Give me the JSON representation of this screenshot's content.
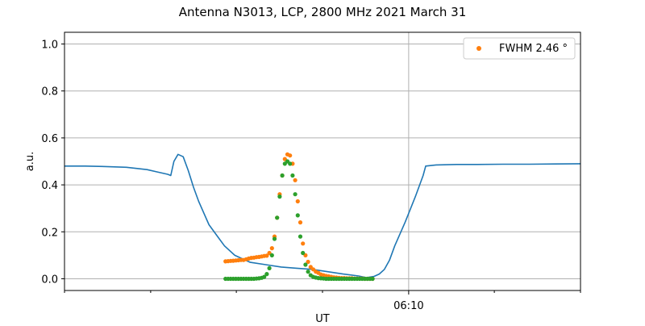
{
  "chart_data": {
    "type": "scatter",
    "title": "Antenna N3013, LCP, 2800 MHz 2021 March 31",
    "xlabel": "UT",
    "ylabel": "a.u.",
    "xlim": [
      0,
      100
    ],
    "ylim": [
      -0.05,
      1.05
    ],
    "yticks": [
      0.0,
      0.2,
      0.4,
      0.6,
      0.8,
      1.0
    ],
    "ytick_labels": [
      "0.0",
      "0.2",
      "0.4",
      "0.6",
      "0.8",
      "1.0"
    ],
    "xticks_labeled": [
      {
        "x": 66.7,
        "label": "06:10"
      }
    ],
    "xticks_minor": [
      0,
      16.7,
      33.3,
      50,
      83.3,
      100
    ],
    "grid": true,
    "legend_position": "top-right",
    "colors": {
      "line": "#1f77b4",
      "data": "#ff7f0e",
      "fit": "#2ca02c",
      "grid": "#b0b0b0"
    },
    "series": [
      {
        "kind": "line",
        "x": [
          0,
          4,
          8,
          12,
          16,
          18,
          20,
          20.6,
          21.2,
          22,
          23,
          24,
          25,
          26,
          28,
          30,
          31,
          33,
          36,
          39,
          42,
          45,
          48,
          51,
          54,
          57,
          58.5,
          60,
          61,
          62,
          63,
          64,
          66,
          68,
          69.5,
          70,
          72,
          76,
          80,
          85,
          90,
          95,
          100
        ],
        "y": [
          0.48,
          0.48,
          0.478,
          0.475,
          0.465,
          0.455,
          0.445,
          0.44,
          0.5,
          0.53,
          0.52,
          0.46,
          0.39,
          0.33,
          0.23,
          0.17,
          0.14,
          0.1,
          0.07,
          0.06,
          0.05,
          0.045,
          0.04,
          0.03,
          0.02,
          0.012,
          0.005,
          0.01,
          0.02,
          0.04,
          0.08,
          0.14,
          0.24,
          0.35,
          0.44,
          0.48,
          0.485,
          0.487,
          0.487,
          0.488,
          0.488,
          0.489,
          0.49
        ]
      },
      {
        "kind": "scatter",
        "name": "FWHM 2.46$^\\circ$",
        "legend_label": "FWHM 2.46 °",
        "x": [
          31.2,
          31.7,
          32.2,
          32.7,
          33.2,
          33.7,
          34.2,
          34.7,
          35.2,
          35.7,
          36.2,
          36.7,
          37.2,
          37.7,
          38.2,
          38.7,
          39.2,
          39.7,
          40.2,
          40.7,
          41.2,
          41.7,
          42.2,
          42.7,
          43.2,
          43.7,
          44.2,
          44.7,
          45.2,
          45.7,
          46.2,
          46.7,
          47.2,
          47.7,
          48.2,
          48.7,
          49.2,
          49.7,
          50.2,
          50.7,
          51.2,
          51.7,
          52.2,
          52.7,
          53.2,
          53.7,
          54.2,
          54.7,
          55.2,
          55.7,
          56.2,
          56.7,
          57.2,
          57.7,
          58.2,
          58.7,
          59.2,
          59.7
        ],
        "y": [
          0.074,
          0.075,
          0.076,
          0.077,
          0.078,
          0.079,
          0.08,
          0.08,
          0.083,
          0.086,
          0.089,
          0.09,
          0.092,
          0.093,
          0.095,
          0.097,
          0.098,
          0.11,
          0.13,
          0.18,
          0.26,
          0.36,
          0.44,
          0.51,
          0.53,
          0.525,
          0.49,
          0.42,
          0.33,
          0.24,
          0.15,
          0.1,
          0.072,
          0.05,
          0.04,
          0.03,
          0.025,
          0.018,
          0.015,
          0.012,
          0.01,
          0.008,
          0.006,
          0.005,
          0.004,
          0.003,
          0.003,
          0.002,
          0.002,
          0.002,
          0.001,
          0.001,
          0.001,
          0.001,
          0.0,
          0.0,
          0.0,
          0.0
        ]
      },
      {
        "kind": "scatter",
        "x": [
          31.2,
          31.7,
          32.2,
          32.7,
          33.2,
          33.7,
          34.2,
          34.7,
          35.2,
          35.7,
          36.2,
          36.7,
          37.2,
          37.7,
          38.2,
          38.7,
          39.2,
          39.7,
          40.2,
          40.7,
          41.2,
          41.7,
          42.2,
          42.7,
          43.2,
          43.7,
          44.2,
          44.7,
          45.2,
          45.7,
          46.2,
          46.7,
          47.2,
          47.7,
          48.2,
          48.7,
          49.2,
          49.7,
          50.2,
          50.7,
          51.2,
          51.7,
          52.2,
          52.7,
          53.2,
          53.7,
          54.2,
          54.7,
          55.2,
          55.7,
          56.2,
          56.7,
          57.2,
          57.7,
          58.2,
          58.7,
          59.2,
          59.7
        ],
        "y": [
          0.0,
          0.0,
          0.0,
          0.0,
          0.0,
          0.0,
          0.0,
          0.0,
          0.0,
          0.0,
          0.0,
          0.0,
          0.001,
          0.002,
          0.004,
          0.008,
          0.02,
          0.045,
          0.1,
          0.17,
          0.26,
          0.35,
          0.44,
          0.49,
          0.5,
          0.49,
          0.44,
          0.36,
          0.27,
          0.18,
          0.11,
          0.06,
          0.03,
          0.015,
          0.008,
          0.005,
          0.003,
          0.002,
          0.001,
          0.0,
          0.0,
          0.0,
          0.0,
          0.0,
          0.0,
          0.0,
          0.0,
          0.0,
          0.0,
          0.0,
          0.0,
          0.0,
          0.0,
          0.0,
          0.0,
          0.0,
          0.0,
          0.0
        ]
      }
    ]
  }
}
